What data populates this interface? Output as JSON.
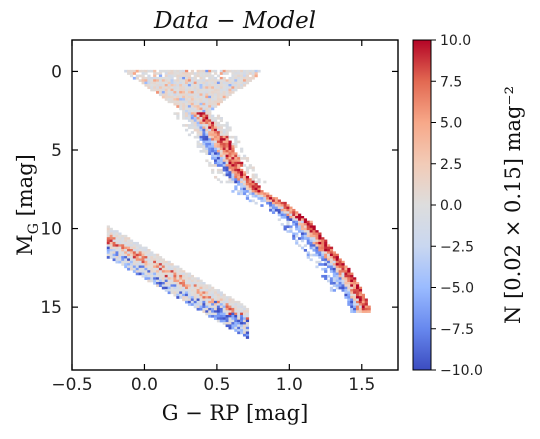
{
  "chart_data": {
    "type": "heatmap",
    "title": "Data − Model",
    "xlabel": "G − RP [mag]",
    "ylabel_main": "M",
    "ylabel_sub": "G",
    "ylabel_unit": " [mag]",
    "xlim": [
      -0.5,
      1.75
    ],
    "ylim": [
      19,
      -2
    ],
    "y_inverted": true,
    "x_ticks": [
      -0.5,
      0.0,
      0.5,
      1.0,
      1.5
    ],
    "x_tick_labels": [
      "−0.5",
      "0.0",
      "0.5",
      "1.0",
      "1.5"
    ],
    "y_ticks": [
      0,
      5,
      10,
      15
    ],
    "y_tick_labels": [
      "0",
      "5",
      "10",
      "15"
    ],
    "grid": false,
    "bin_size": {
      "x": 0.02,
      "y": 0.15
    },
    "colormap": "coolwarm",
    "colorbar": {
      "label": "N [0.02 × 0.15] mag⁻²",
      "vmin": -10.0,
      "vmax": 10.0,
      "ticks": [
        10.0,
        7.5,
        5.0,
        2.5,
        0.0,
        -2.5,
        -5.0,
        -7.5,
        -10.0
      ],
      "tick_labels": [
        "10.0",
        "7.5",
        "5.0",
        "2.5",
        "0.0",
        "−2.5",
        "−5.0",
        "−7.5",
        "−10.0"
      ],
      "colors": [
        "#3b4cc0",
        "#6788ee",
        "#9abbff",
        "#c9d7f0",
        "#dddddd",
        "#f2cbb7",
        "#f7a889",
        "#e26952",
        "#b40426"
      ]
    },
    "regions": [
      {
        "name": "main sequence and giant branch",
        "trend": "data excess (red) along upper ridge, deficit (blue) along lower ridge"
      },
      {
        "name": "white dwarf sequence",
        "trend": "mixed residuals, deficit at faint red end"
      }
    ]
  }
}
